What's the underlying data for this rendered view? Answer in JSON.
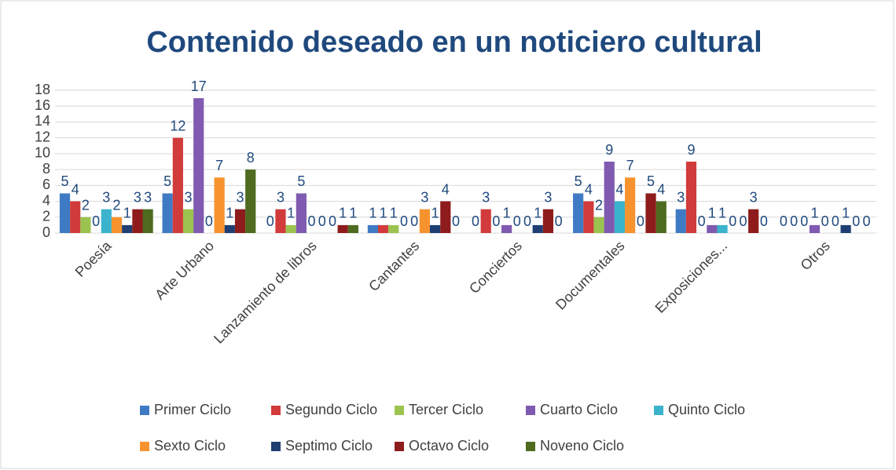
{
  "chart_data": {
    "type": "bar",
    "title": "Contenido deseado en un noticiero cultural",
    "categories": [
      "Poesía",
      "Arte Urbano",
      "Lanzamiento de libros",
      "Cantantes",
      "Conciertos",
      "Documentales",
      "Exposiciones...",
      "Otros"
    ],
    "series": [
      {
        "name": "Primer Ciclo",
        "color": "#3f7bc4",
        "values": [
          5,
          5,
          0,
          1,
          0,
          5,
          3,
          0
        ]
      },
      {
        "name": "Segundo Ciclo",
        "color": "#d13b3b",
        "values": [
          4,
          12,
          3,
          1,
          3,
          4,
          9,
          0
        ]
      },
      {
        "name": "Tercer Ciclo",
        "color": "#9bc34f",
        "values": [
          2,
          3,
          1,
          1,
          0,
          2,
          0,
          0
        ]
      },
      {
        "name": "Cuarto Ciclo",
        "color": "#7f5ab0",
        "values": [
          0,
          17,
          5,
          0,
          1,
          9,
          1,
          1
        ]
      },
      {
        "name": "Quinto Ciclo",
        "color": "#3bb3cc",
        "values": [
          3,
          0,
          0,
          0,
          0,
          4,
          1,
          0
        ]
      },
      {
        "name": "Sexto Ciclo",
        "color": "#f7932f",
        "values": [
          2,
          7,
          0,
          3,
          0,
          7,
          0,
          0
        ]
      },
      {
        "name": "Septimo Ciclo",
        "color": "#1f3f72",
        "values": [
          1,
          1,
          0,
          1,
          1,
          0,
          0,
          1
        ]
      },
      {
        "name": "Octavo Ciclo",
        "color": "#8e1c1c",
        "values": [
          3,
          3,
          1,
          4,
          3,
          5,
          3,
          0
        ]
      },
      {
        "name": "Noveno Ciclo",
        "color": "#4e6b1f",
        "values": [
          3,
          8,
          1,
          0,
          0,
          4,
          0,
          0
        ]
      }
    ],
    "ylim": [
      0,
      18
    ],
    "yticks": [
      0,
      2,
      4,
      6,
      8,
      10,
      12,
      14,
      16,
      18
    ],
    "grid": true,
    "legend": "bottom"
  }
}
